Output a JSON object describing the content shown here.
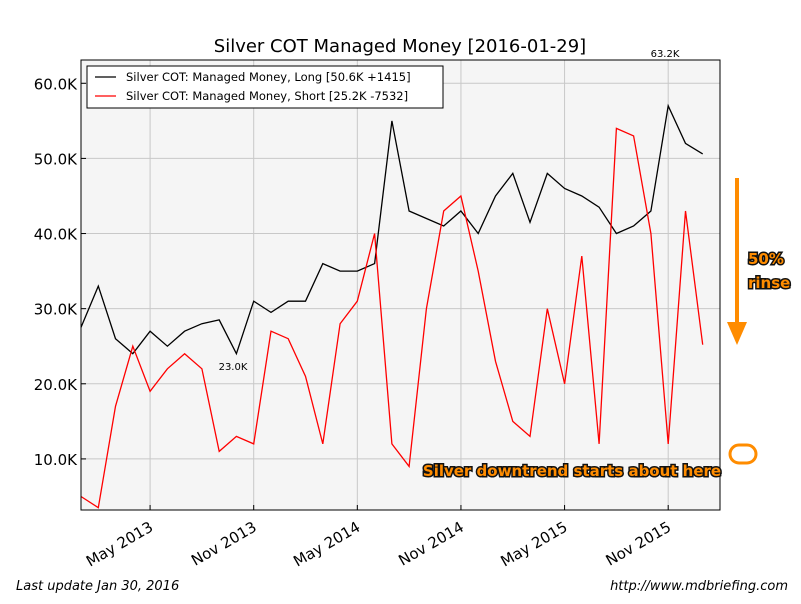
{
  "chart_data": {
    "type": "line",
    "title": "Silver COT Managed Money  [2016-01-29]",
    "x": [
      "2013-01",
      "2013-02",
      "2013-03",
      "2013-04",
      "2013-05",
      "2013-06",
      "2013-07",
      "2013-08",
      "2013-09",
      "2013-10",
      "2013-11",
      "2013-12",
      "2014-01",
      "2014-02",
      "2014-03",
      "2014-04",
      "2014-05",
      "2014-06",
      "2014-07",
      "2014-08",
      "2014-09",
      "2014-10",
      "2014-11",
      "2014-12",
      "2015-01",
      "2015-02",
      "2015-03",
      "2015-04",
      "2015-05",
      "2015-06",
      "2015-07",
      "2015-08",
      "2015-09",
      "2015-10",
      "2015-11",
      "2015-12",
      "2016-01"
    ],
    "series": [
      {
        "name": "Silver COT: Managed Money, Long [50.6K +1415]",
        "color": "#000000",
        "values": [
          27500,
          33000,
          26000,
          24000,
          27000,
          25000,
          27000,
          28000,
          28500,
          24000,
          31000,
          29500,
          31000,
          31000,
          36000,
          35000,
          35000,
          36000,
          55000,
          43000,
          42000,
          41000,
          43000,
          40000,
          45000,
          48000,
          41500,
          48000,
          46000,
          45000,
          43500,
          40000,
          41000,
          43000,
          57000,
          52000,
          50600
        ]
      },
      {
        "name": "Silver COT: Managed Money, Short [25.2K -7532]",
        "color": "#ff0000",
        "values": [
          5000,
          3500,
          17000,
          25000,
          19000,
          22000,
          24000,
          22000,
          11000,
          13000,
          12000,
          27000,
          26000,
          21000,
          12000,
          28000,
          31000,
          40000,
          12000,
          9000,
          30000,
          43000,
          45000,
          35000,
          23000,
          15000,
          13000,
          30000,
          20000,
          37000,
          12000,
          54000,
          53000,
          40000,
          12000,
          43000,
          25200
        ]
      }
    ],
    "xlim": [
      "2013-01",
      "2016-02"
    ],
    "xticks": [
      {
        "value": "2013-05",
        "label": "May 2013"
      },
      {
        "value": "2013-11",
        "label": "Nov 2013"
      },
      {
        "value": "2014-05",
        "label": "May 2014"
      },
      {
        "value": "2014-11",
        "label": "Nov 2014"
      },
      {
        "value": "2015-05",
        "label": "May 2015"
      },
      {
        "value": "2015-11",
        "label": "Nov 2015"
      }
    ],
    "ylim": [
      3200,
      63100
    ],
    "yticks": [
      {
        "value": 10000,
        "label": "10.0K"
      },
      {
        "value": 20000,
        "label": "20.0K"
      },
      {
        "value": 30000,
        "label": "30.0K"
      },
      {
        "value": 40000,
        "label": "40.0K"
      },
      {
        "value": 50000,
        "label": "50.0K"
      },
      {
        "value": 60000,
        "label": "60.0K"
      }
    ],
    "grid": true,
    "legend": "upper left",
    "annotations": [
      "63.2K",
      "23.0K",
      "Silver downtrend starts about here",
      "50% rinse"
    ],
    "footer_left": "Last update Jan 30, 2016",
    "footer_right": "http://www.mdbriefing.com"
  }
}
